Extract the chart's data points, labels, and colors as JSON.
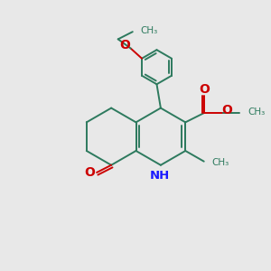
{
  "bg_color": "#e8e8e8",
  "bond_color": "#2d7a5e",
  "bond_width": 1.4,
  "o_color": "#cc0000",
  "n_color": "#1a1aff",
  "figsize": [
    3.0,
    3.0
  ],
  "dpi": 100,
  "xlim": [
    0,
    10
  ],
  "ylim": [
    0,
    10
  ]
}
